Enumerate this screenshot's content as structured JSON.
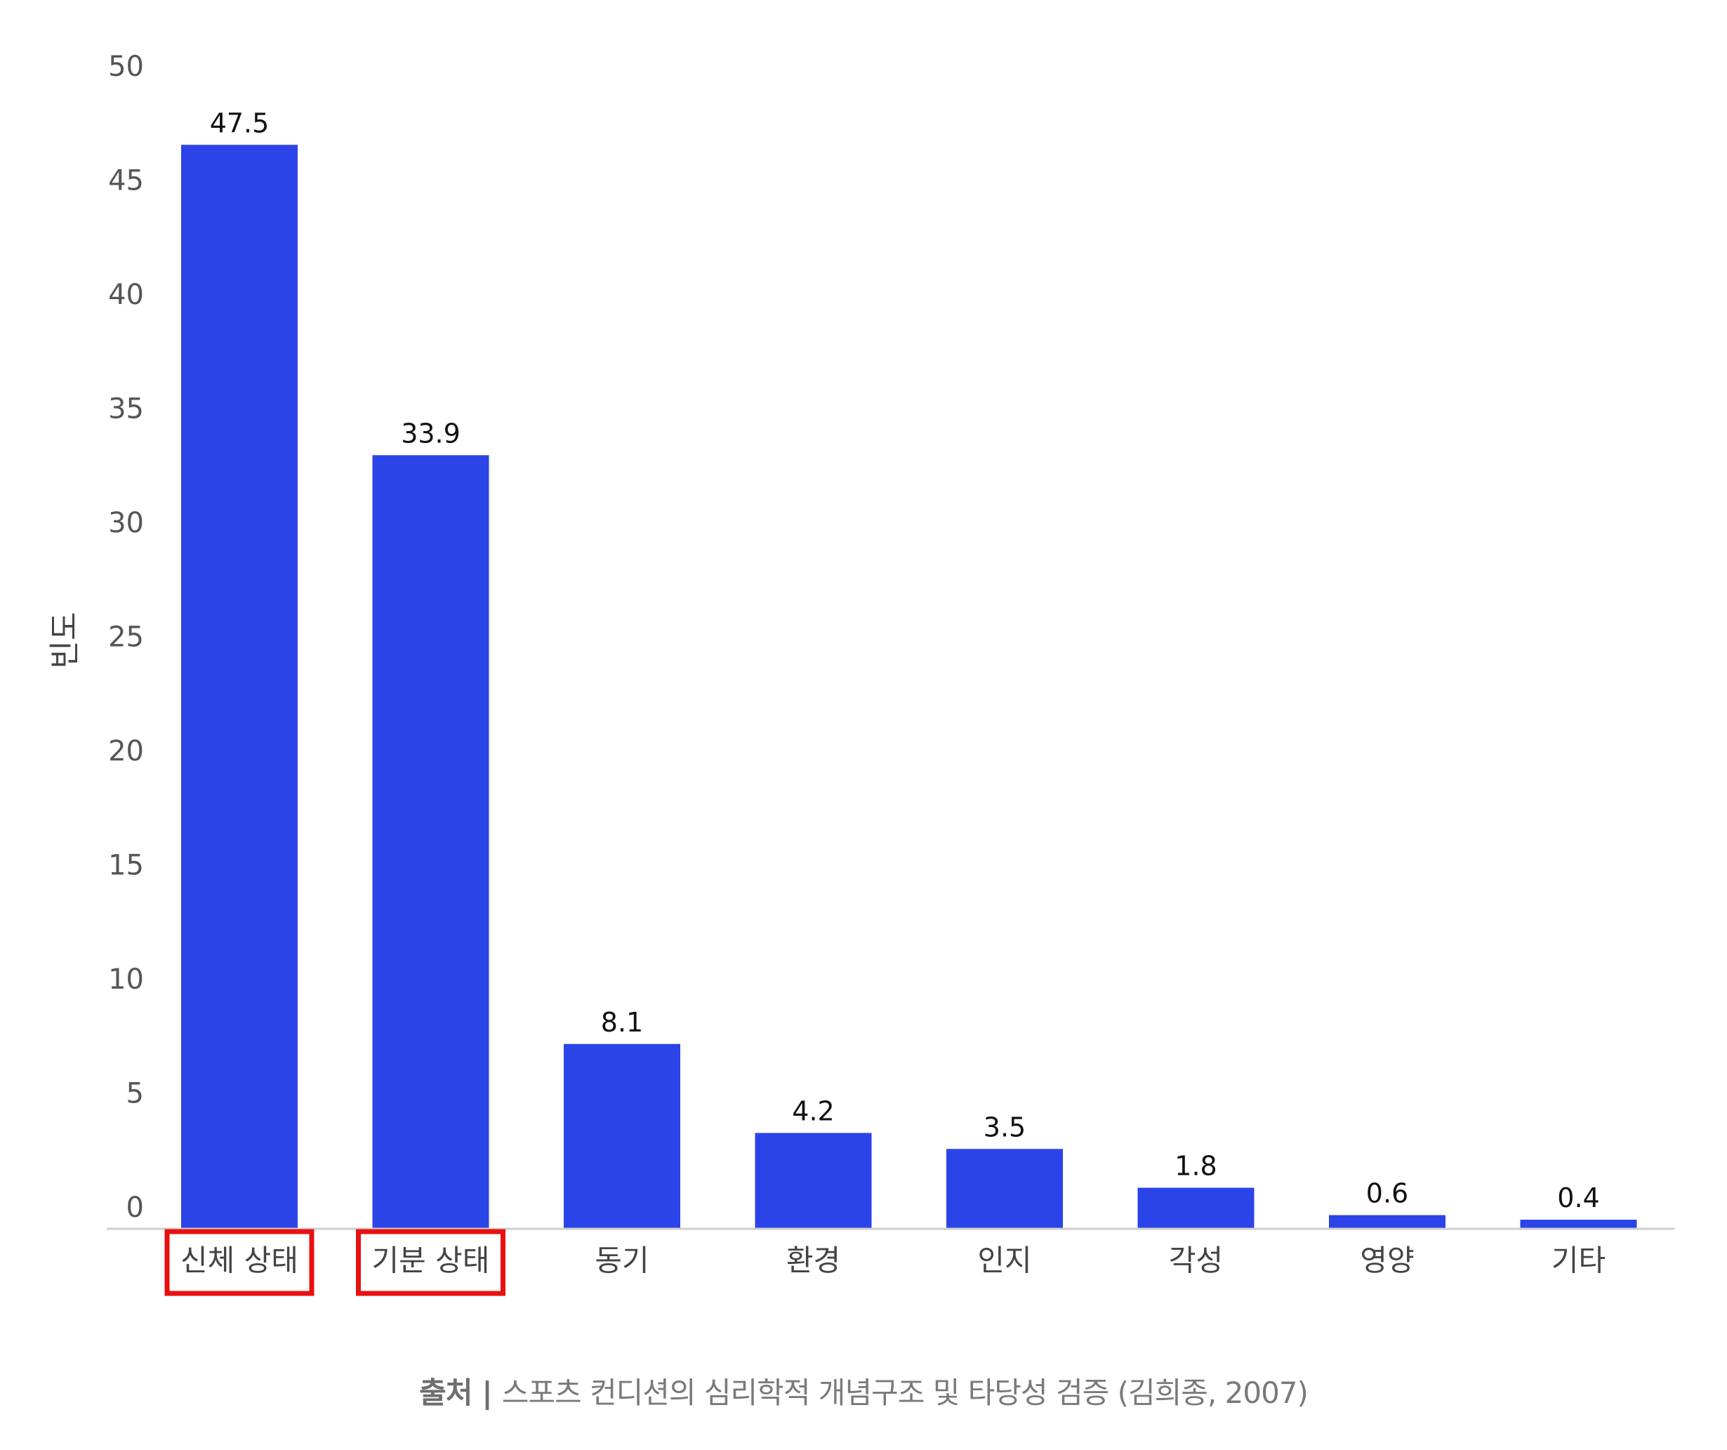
{
  "chart_data": {
    "type": "bar",
    "categories": [
      "신체 상태",
      "기분 상태",
      "동기",
      "환경",
      "인지",
      "각성",
      "영양",
      "기타"
    ],
    "values": [
      47.5,
      33.9,
      8.1,
      4.2,
      3.5,
      1.8,
      0.6,
      0.4
    ],
    "value_labels": [
      "47.5",
      "33.9",
      "8.1",
      "4.2",
      "3.5",
      "1.8",
      "0.6",
      "0.4"
    ],
    "highlighted_categories": [
      "신체 상태",
      "기분 상태"
    ],
    "ylabel": "빈도",
    "xlabel": "",
    "ylim": [
      0,
      50
    ],
    "yticks": [
      0,
      5,
      10,
      15,
      20,
      25,
      30,
      35,
      40,
      45,
      50
    ],
    "grid": false,
    "bar_color": "#2b44e8",
    "highlight_color": "#e81010"
  },
  "source": {
    "label": "출처",
    "separator": "|",
    "text": "스포츠 컨디션의 심리학적 개념구조 및 타당성 검증 (김희종, 2007)"
  }
}
